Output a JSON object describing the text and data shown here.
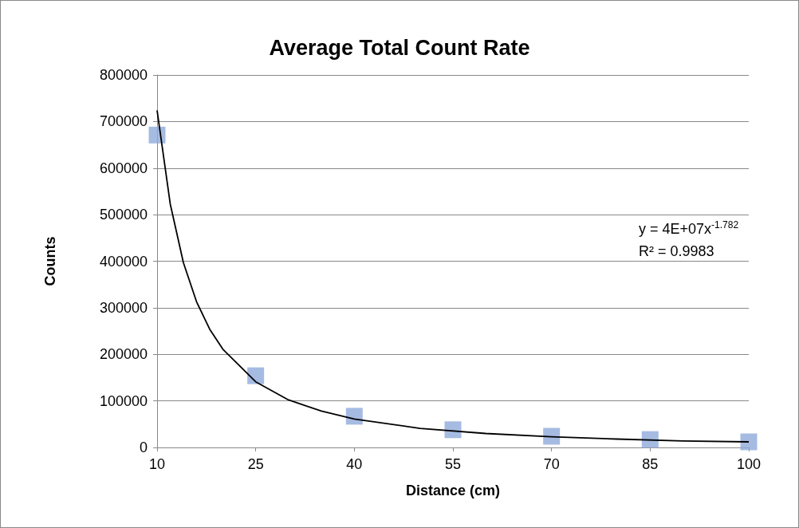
{
  "chart_data": {
    "type": "scatter",
    "title": "Average Total Count Rate",
    "xlabel": "Distance (cm)",
    "ylabel": "Counts",
    "x": [
      10,
      25,
      40,
      55,
      70,
      85,
      100
    ],
    "series": [
      {
        "color": "#8eaadb",
        "marker": "square",
        "values": [
          671000,
          154000,
          67000,
          38000,
          24000,
          17000,
          12000
        ]
      },
      {
        "type": "line",
        "color": "#000000",
        "x": [
          10,
          12,
          14,
          16,
          18,
          20,
          25,
          30,
          35,
          40,
          50,
          60,
          70,
          80,
          90,
          100
        ],
        "values": [
          724000,
          523000,
          397000,
          313000,
          254000,
          211000,
          141000,
          102000,
          78000,
          61000,
          41000,
          30000,
          23000,
          18000,
          14000,
          12000
        ]
      }
    ],
    "xlim": [
      10,
      100
    ],
    "xticks": [
      10,
      25,
      40,
      55,
      70,
      85,
      100
    ],
    "ylim": [
      0,
      800000
    ],
    "yticks": [
      0,
      100000,
      200000,
      300000,
      400000,
      500000,
      600000,
      700000,
      800000
    ],
    "annotations": [
      "y = 4E+07x$^{-1.782}$",
      "R² = 0.9983"
    ],
    "grid": "y"
  }
}
